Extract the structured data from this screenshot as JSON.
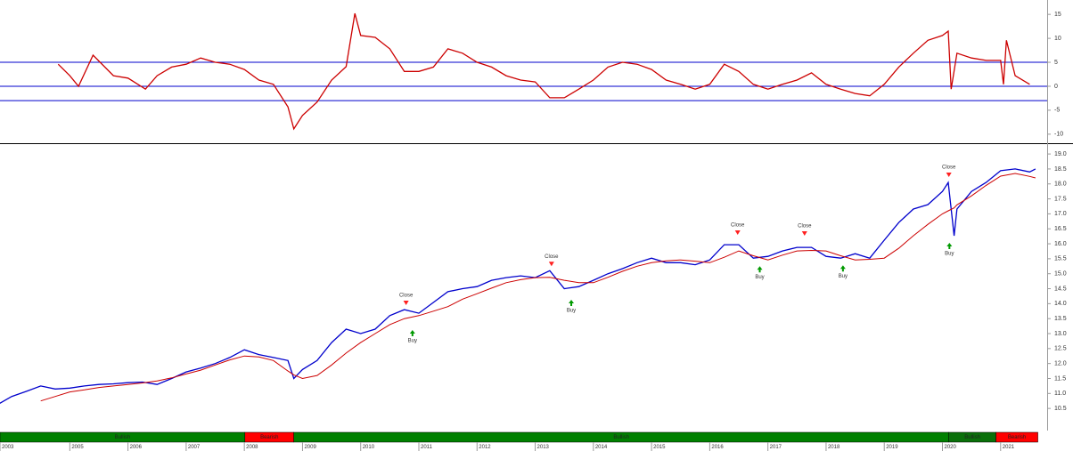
{
  "chart_data": [
    {
      "type": "line",
      "x": [
        2004.8,
        2005,
        2005.15,
        2005.4,
        2005.75,
        2006,
        2006.3,
        2006.5,
        2006.75,
        2007,
        2007.25,
        2007.5,
        2007.75,
        2008,
        2008.25,
        2008.5,
        2008.75,
        2008.85,
        2009,
        2009.25,
        2009.5,
        2009.75,
        2009.9,
        2010,
        2010.25,
        2010.5,
        2010.75,
        2011,
        2011.25,
        2011.5,
        2011.75,
        2012,
        2012.25,
        2012.5,
        2012.75,
        2013,
        2013.25,
        2013.5,
        2013.75,
        2014,
        2014.25,
        2014.5,
        2014.75,
        2015,
        2015.25,
        2015.5,
        2015.75,
        2016,
        2016.25,
        2016.5,
        2016.75,
        2017,
        2017.25,
        2017.5,
        2017.75,
        2018,
        2018.25,
        2018.5,
        2018.75,
        2019,
        2019.25,
        2019.5,
        2019.75,
        2020,
        2020.1,
        2020.15,
        2020.25,
        2020.5,
        2020.75,
        2021,
        2021.05,
        2021.1,
        2021.25,
        2021.5
      ],
      "series": [
        {
          "color": "#cc0000",
          "values": [
            4.6,
            2.2,
            0,
            6.5,
            2.2,
            1.7,
            -0.6,
            2.2,
            4,
            4.6,
            5.9,
            5,
            4.6,
            3.5,
            1.3,
            0.4,
            -4.3,
            -8.9,
            -6.1,
            -3.3,
            1.3,
            4.1,
            15.2,
            10.6,
            10.2,
            7.8,
            3.1,
            3.1,
            4,
            7.8,
            6.9,
            5,
            4,
            2.2,
            1.3,
            0.9,
            -2.4,
            -2.4,
            -0.6,
            1.3,
            4,
            5,
            4.6,
            3.5,
            1.3,
            0.4,
            -0.6,
            0.4,
            4.6,
            3.1,
            0.4,
            -0.6,
            0.4,
            1.3,
            2.8,
            0.4,
            -0.6,
            -1.5,
            -2,
            0.4,
            4,
            6.9,
            9.6,
            10.6,
            11.5,
            -0.6,
            6.9,
            5.9,
            5.4,
            5.4,
            0.4,
            9.6,
            2.2,
            0.4
          ]
        }
      ],
      "hlines": [
        5,
        0,
        -3
      ],
      "hline_color": "#0000cc",
      "xlim": [
        2003.8,
        2021.8
      ],
      "ylim": [
        -11.7,
        18
      ],
      "yticks": [
        15,
        10,
        5,
        0,
        -5,
        -10
      ]
    },
    {
      "type": "line",
      "x": [
        2003.75,
        2004,
        2004.25,
        2004.5,
        2004.75,
        2005,
        2005.25,
        2005.5,
        2005.75,
        2006,
        2006.25,
        2006.5,
        2006.75,
        2007,
        2007.25,
        2007.5,
        2007.75,
        2008,
        2008.25,
        2008.5,
        2008.75,
        2008.85,
        2009,
        2009.25,
        2009.5,
        2009.75,
        2010,
        2010.25,
        2010.5,
        2010.75,
        2011,
        2011.25,
        2011.5,
        2011.75,
        2012,
        2012.25,
        2012.5,
        2012.75,
        2013,
        2013.25,
        2013.5,
        2013.75,
        2014,
        2014.25,
        2014.5,
        2014.75,
        2015,
        2015.25,
        2015.5,
        2015.75,
        2016,
        2016.25,
        2016.5,
        2016.75,
        2017,
        2017.25,
        2017.5,
        2017.75,
        2018,
        2018.25,
        2018.5,
        2018.75,
        2019,
        2019.25,
        2019.5,
        2019.75,
        2020,
        2020.1,
        2020.2,
        2020.25,
        2020.5,
        2020.75,
        2021,
        2021.25,
        2021.5,
        2021.6
      ],
      "series": [
        {
          "color": "#0000cc",
          "values": [
            10.62,
            10.9,
            11.07,
            11.25,
            11.15,
            11.18,
            11.25,
            11.3,
            11.32,
            11.36,
            11.38,
            11.3,
            11.5,
            11.72,
            11.85,
            12.0,
            12.2,
            12.46,
            12.3,
            12.2,
            12.1,
            11.5,
            11.8,
            12.1,
            12.7,
            13.15,
            13.0,
            13.15,
            13.6,
            13.8,
            13.68,
            14.04,
            14.4,
            14.5,
            14.57,
            14.78,
            14.87,
            14.93,
            14.87,
            15.1,
            14.5,
            14.57,
            14.78,
            15.0,
            15.17,
            15.37,
            15.52,
            15.37,
            15.37,
            15.3,
            15.46,
            15.97,
            15.97,
            15.52,
            15.58,
            15.76,
            15.88,
            15.88,
            15.58,
            15.52,
            15.67,
            15.52,
            16.12,
            16.71,
            17.16,
            17.31,
            17.75,
            18.05,
            16.27,
            17.16,
            17.75,
            18.05,
            18.44,
            18.5,
            18.4,
            18.5
          ]
        },
        {
          "color": "#cc0000",
          "values": [
            null,
            null,
            null,
            10.75,
            10.9,
            11.05,
            11.12,
            11.2,
            11.25,
            11.3,
            11.35,
            11.42,
            11.52,
            11.65,
            11.78,
            11.95,
            12.12,
            12.25,
            12.22,
            12.1,
            11.75,
            11.62,
            11.5,
            11.6,
            11.95,
            12.35,
            12.7,
            13.0,
            13.3,
            13.5,
            13.6,
            13.75,
            13.9,
            14.15,
            14.33,
            14.52,
            14.7,
            14.8,
            14.87,
            14.88,
            14.78,
            14.7,
            14.7,
            14.88,
            15.08,
            15.25,
            15.37,
            15.43,
            15.46,
            15.42,
            15.37,
            15.55,
            15.76,
            15.6,
            15.46,
            15.62,
            15.76,
            15.78,
            15.76,
            15.6,
            15.46,
            15.48,
            15.52,
            15.85,
            16.27,
            16.65,
            17.0,
            17.1,
            17.2,
            17.3,
            17.6,
            17.95,
            18.26,
            18.35,
            18.25,
            18.2
          ]
        }
      ],
      "signals": [
        {
          "label": "Close",
          "x": 2010.78,
          "y": 13.92,
          "marker": "triangle-down",
          "color": "#ff2020"
        },
        {
          "label": "Buy",
          "x": 2010.89,
          "y": 13.15,
          "marker": "arrow-up",
          "color": "#009900"
        },
        {
          "label": "Close",
          "x": 2013.28,
          "y": 15.22,
          "marker": "triangle-down",
          "color": "#ff2020"
        },
        {
          "label": "Buy",
          "x": 2013.62,
          "y": 14.16,
          "marker": "arrow-up",
          "color": "#009900"
        },
        {
          "label": "Close",
          "x": 2016.48,
          "y": 16.27,
          "marker": "triangle-down",
          "color": "#ff2020"
        },
        {
          "label": "Buy",
          "x": 2016.86,
          "y": 15.28,
          "marker": "arrow-up",
          "color": "#009900"
        },
        {
          "label": "Close",
          "x": 2017.63,
          "y": 16.24,
          "marker": "triangle-down",
          "color": "#ff2020"
        },
        {
          "label": "Buy",
          "x": 2018.29,
          "y": 15.31,
          "marker": "arrow-up",
          "color": "#009900"
        },
        {
          "label": "Close",
          "x": 2020.11,
          "y": 18.2,
          "marker": "triangle-down",
          "color": "#ff2020"
        },
        {
          "label": "Buy",
          "x": 2020.12,
          "y": 16.06,
          "marker": "arrow-up",
          "color": "#009900"
        }
      ],
      "regimes": [
        {
          "label": "Bullish",
          "from": 2003.8,
          "to": 2008.01,
          "color": "#008000"
        },
        {
          "label": "Bearish",
          "from": 2008.01,
          "to": 2008.85,
          "color": "#ff0000"
        },
        {
          "label": "Bullish",
          "from": 2008.85,
          "to": 2020.11,
          "color": "#008000"
        },
        {
          "label": "Bullish",
          "from": 2020.11,
          "to": 2020.92,
          "color": "#0a700a"
        },
        {
          "label": "Bearish",
          "from": 2020.92,
          "to": 2021.64,
          "color": "#ff0000"
        }
      ],
      "xlim": [
        2003.8,
        2021.8
      ],
      "ylim": [
        9.88,
        19.3
      ],
      "yticks": [
        {
          "value": 19,
          "label": "19.0"
        },
        18.5,
        {
          "value": 18,
          "label": "18.0"
        },
        17.5,
        {
          "value": 17,
          "label": "17.0"
        },
        16.5,
        {
          "value": 16,
          "label": "16.0"
        },
        15.5,
        {
          "value": 15,
          "label": "15.0"
        },
        14.5,
        {
          "value": 14,
          "label": "14.0"
        },
        13.5,
        {
          "value": 13,
          "label": "13.0"
        },
        12.5,
        {
          "value": 12,
          "label": "12.0"
        },
        11.5,
        {
          "value": 11,
          "label": "11.0"
        },
        10.5
      ],
      "xticks": [
        {
          "value": 2003.8,
          "label": "2003"
        },
        2005,
        2006,
        2007,
        2008,
        2009,
        2010,
        2011,
        2012,
        2013,
        2014,
        2015,
        2016,
        2017,
        2018,
        2019,
        2020,
        2021
      ]
    }
  ]
}
